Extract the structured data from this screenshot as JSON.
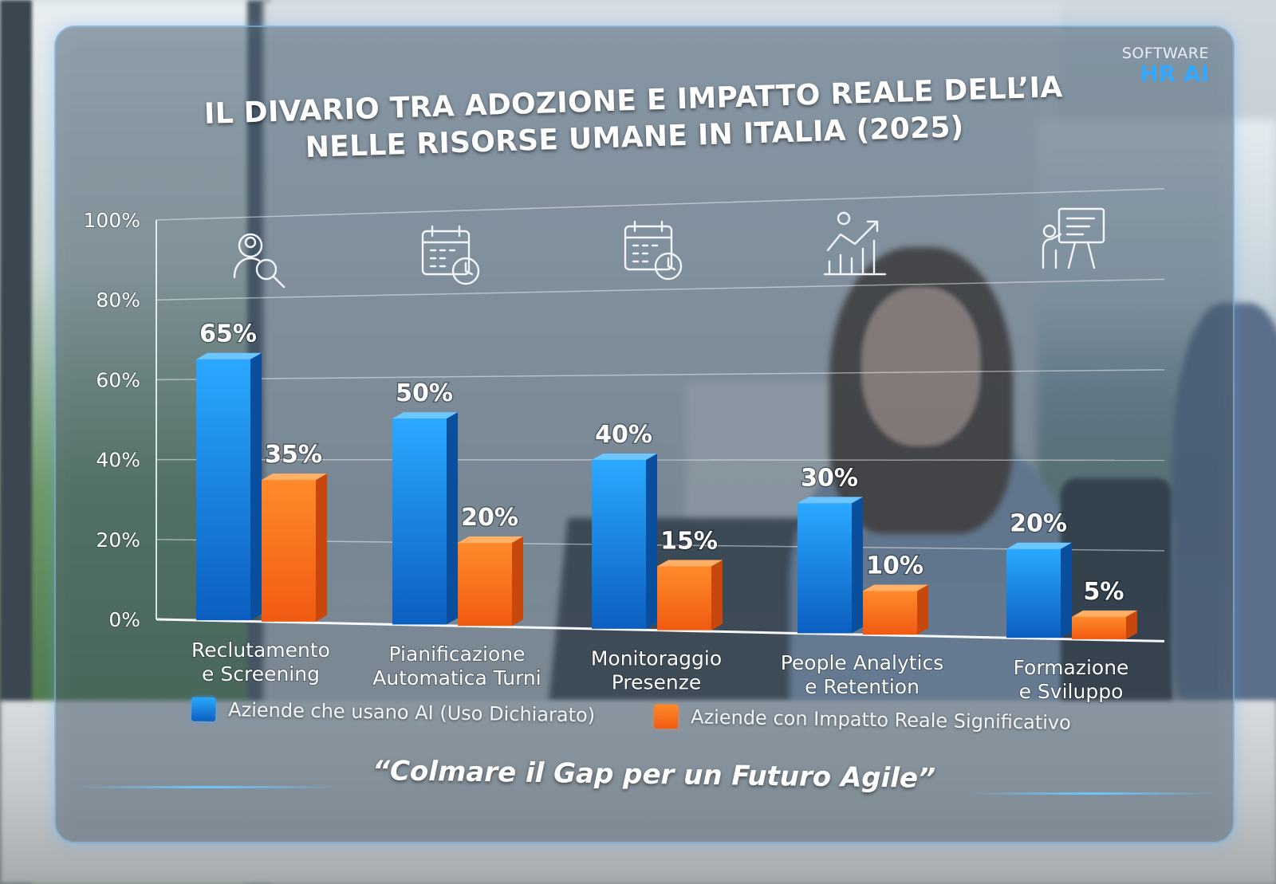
{
  "brand": {
    "line1": "SOFTWARE",
    "line2": "HR AI"
  },
  "chart_data": {
    "type": "bar",
    "title": "IL DIVARIO TRA ADOZIONE E IMPATTO REALE DELL’IA NELLE RISORSE UMANE IN ITALIA (2025)",
    "title_lines": [
      "IL DIVARIO TRA ADOZIONE E IMPATTO REALE DELL’IA",
      "NELLE RISORSE UMANE IN ITALIA (2025)"
    ],
    "categories": [
      "Reclutamento e Screening",
      "Pianificazione Automatica Turni",
      "Monitoraggio Presenze",
      "People Analytics e Retention",
      "Formazione e Sviluppo"
    ],
    "category_lines": [
      [
        "Reclutamento",
        "e Screening"
      ],
      [
        "Pianificazione",
        "Automatica Turni"
      ],
      [
        "Monitoraggio",
        "Presenze"
      ],
      [
        "People Analytics",
        "e Retention"
      ],
      [
        "Formazione",
        "e Sviluppo"
      ]
    ],
    "series": [
      {
        "name": "Aziende che usano AI (Uso Dichiarato)",
        "values": [
          65,
          50,
          40,
          30,
          20
        ],
        "color": "#1b8fe8"
      },
      {
        "name": "Aziende con Impatto Reale Significativo",
        "values": [
          35,
          20,
          15,
          10,
          5
        ],
        "color": "#ff7a1f"
      }
    ],
    "value_labels": [
      [
        "65%",
        "50%",
        "40%",
        "30%",
        "20%"
      ],
      [
        "35%",
        "20%",
        "15%",
        "10%",
        "5%"
      ]
    ],
    "y_ticks": [
      "0%",
      "20%",
      "40%",
      "60%",
      "80%",
      "100%"
    ],
    "ylim": [
      0,
      100
    ],
    "xlabel": "",
    "ylabel": "",
    "grid": true,
    "legend_position": "bottom",
    "category_icons": [
      "person-search-icon",
      "calendar-clock-icon",
      "calendar-clock-icon",
      "analytics-chart-icon",
      "presentation-board-icon"
    ]
  },
  "tagline": "“Colmare il Gap per un Futuro Agile”"
}
